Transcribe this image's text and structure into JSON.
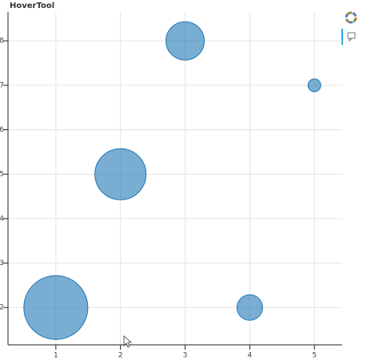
{
  "chart_data": {
    "type": "scatter",
    "title": "HoverTool",
    "x": [
      1,
      2,
      3,
      4,
      5
    ],
    "values": [
      2,
      5,
      8,
      2,
      7
    ],
    "sizes": [
      80,
      64,
      48,
      32,
      16
    ],
    "color": "#1f77b4",
    "xlim": [
      0.26,
      5.43
    ],
    "ylim": [
      1.16,
      8.65
    ],
    "xticks": [
      1,
      2,
      3,
      4,
      5
    ],
    "yticks": [
      2,
      3,
      4,
      5,
      6,
      7,
      8
    ],
    "grid": true
  }
}
